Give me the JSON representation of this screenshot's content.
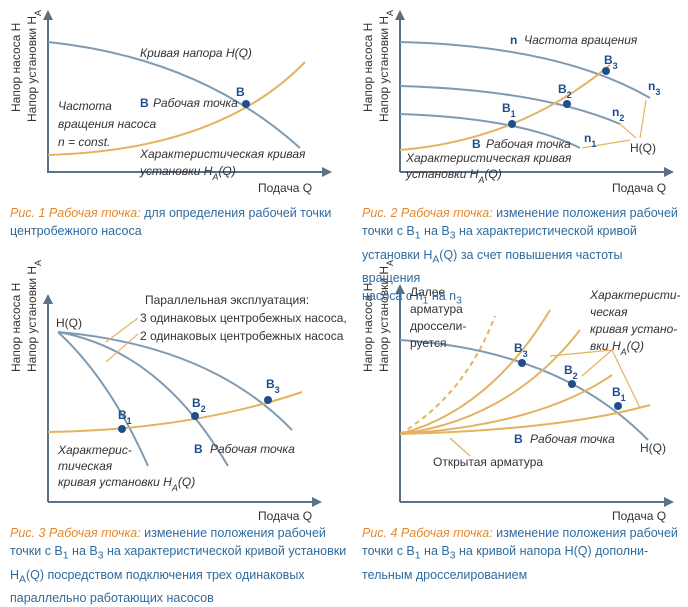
{
  "fig1": {
    "y_label_1": "Напор насоса H",
    "y_label_2": "Напор установки H",
    "y_label_2_sub": "A",
    "x_label": "Подача Q",
    "pump_curve_label": "Кривая напора H(Q)",
    "point_letter": "B",
    "point_label": "Рабочая точка",
    "speed_text_1": "Частота",
    "speed_text_2": "вращения насоса",
    "speed_text_3": "n = const.",
    "system_curve_label_1": "Характеристическая кривая",
    "system_curve_label_2": "установки H",
    "system_curve_label_2_sub": "A",
    "system_curve_label_2_end": "(Q)",
    "caption_highlight": "Рис. 1 Рабочая точка:",
    "caption_1": " для определения рабочей точки",
    "caption_2": "центробежного насоса"
  },
  "fig2": {
    "y_label_1": "Напор насоса H",
    "y_label_2": "Напор установки H",
    "y_label_2_sub": "A",
    "x_label": "Подача Q",
    "n_letter": "n",
    "n_label": "Частота вращения",
    "n1": "n",
    "n1_sub": "1",
    "n2": "n",
    "n2_sub": "2",
    "n3": "n",
    "n3_sub": "3",
    "b1": "B",
    "b1_sub": "1",
    "b2": "B",
    "b2_sub": "2",
    "b3": "B",
    "b3_sub": "3",
    "hq_label": "H(Q)",
    "point_letter": "B",
    "point_label": "Рабочая точка",
    "system_curve_label_1": "Характеристическая кривая",
    "system_curve_label_2": "установки H",
    "system_curve_label_2_sub": "A",
    "system_curve_label_2_end": "(Q)",
    "caption_highlight": "Рис. 2 Рабочая точка:",
    "caption_1": " изменение положения рабочей",
    "caption_2a": "точки с B",
    "caption_2b": "1",
    "caption_2c": " на B",
    "caption_2d": "3",
    "caption_2e": " на характеристической кривой",
    "caption_3a": "установки H",
    "caption_3b": "A",
    "caption_3c": "(Q) за счет повышения частоты вращения",
    "caption_4a": "насоса с n",
    "caption_4b": "1",
    "caption_4c": " на n",
    "caption_4d": "3"
  },
  "fig3": {
    "y_label_1": "Напор насоса H",
    "y_label_2": "Напор установки H",
    "y_label_2_sub": "A",
    "x_label": "Подача Q",
    "hq_label": "H(Q)",
    "parallel_title": "Параллельная эксплуатация:",
    "parallel_3": "3 одинаковых центробежных насоса,",
    "parallel_2": "2 одинаковых центробежных насоса",
    "b1": "B",
    "b1_sub": "1",
    "b2": "B",
    "b2_sub": "2",
    "b3": "B",
    "b3_sub": "3",
    "point_letter": "B",
    "point_label": "Рабочая точка",
    "system_curve_label_1": "Характерис-",
    "system_curve_label_2": "тическая",
    "system_curve_label_3": "кривая установки H",
    "system_curve_label_3_sub": "A",
    "system_curve_label_3_end": "(Q)",
    "caption_highlight": "Рис. 3 Рабочая точка:",
    "caption_1": " изменение положения рабочей",
    "caption_2a": "точки с B",
    "caption_2b": "1",
    "caption_2c": " на B",
    "caption_2d": "3",
    "caption_2e": " на характеристической кривой установки",
    "caption_3a": "H",
    "caption_3b": "A",
    "caption_3c": "(Q) посредством подключения трех одинаковых",
    "caption_4": "параллельно работающих насосов"
  },
  "fig4": {
    "y_label_1": "Напор насоса H",
    "y_label_2": "Напор установки H",
    "y_label_2_sub": "A",
    "x_label": "Подача Q",
    "throttle_1": "Далее",
    "throttle_2": "арматура",
    "throttle_3": "дроссели-",
    "throttle_4": "руется",
    "system_curve_label_1": "Характеристи-",
    "system_curve_label_2": "ческая",
    "system_curve_label_3": "кривая устано-",
    "system_curve_label_4": "вки H",
    "system_curve_label_4_sub": "A",
    "system_curve_label_4_end": "(Q)",
    "b1": "B",
    "b1_sub": "1",
    "b2": "B",
    "b2_sub": "2",
    "b3": "B",
    "b3_sub": "3",
    "point_letter": "B",
    "point_label": "Рабочая точка",
    "open_label": "Открытая арматура",
    "hq_label": "H(Q)",
    "caption_highlight": "Рис. 4 Рабочая точка:",
    "caption_1": " изменение положения рабочей",
    "caption_2a": "точки с B",
    "caption_2b": "1",
    "caption_2c": " на B",
    "caption_2d": "3",
    "caption_2e": " на кривой напора H(Q) дополни-",
    "caption_3": "тельным дросселированием"
  },
  "colors": {
    "accent": "#e58a2c",
    "caption": "#2f6b9e",
    "pump": "#7f9bb4",
    "system": "#e3b35f",
    "point": "#1f4e8c"
  }
}
